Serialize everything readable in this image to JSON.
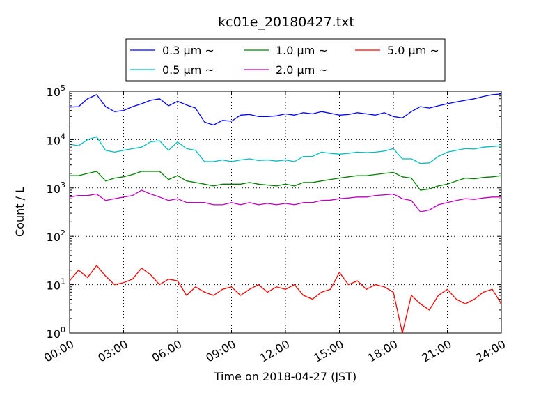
{
  "chart_data": {
    "type": "line",
    "title": "kc01e_20180427.txt",
    "xlabel": "Time on 2018-04-27 (JST)",
    "ylabel": "Count / L",
    "yscale": "log",
    "ylim": [
      1,
      100000
    ],
    "xlim": [
      "00:00",
      "24:00"
    ],
    "x_ticks": [
      "00:00",
      "03:00",
      "06:00",
      "09:00",
      "12:00",
      "15:00",
      "18:00",
      "21:00",
      "24:00"
    ],
    "y_ticks": [
      {
        "value": 1,
        "base": "10",
        "exp": "0"
      },
      {
        "value": 10,
        "base": "10",
        "exp": "1"
      },
      {
        "value": 100,
        "base": "10",
        "exp": "2"
      },
      {
        "value": 1000,
        "base": "10",
        "exp": "3"
      },
      {
        "value": 10000,
        "base": "10",
        "exp": "4"
      },
      {
        "value": 100000,
        "base": "10",
        "exp": "5"
      }
    ],
    "grid": true,
    "legend_position": "top-center",
    "x_hours": [
      0,
      0.5,
      1,
      1.5,
      2,
      2.5,
      3,
      3.5,
      4,
      4.5,
      5,
      5.5,
      6,
      6.5,
      7,
      7.5,
      8,
      8.5,
      9,
      9.5,
      10,
      10.5,
      11,
      11.5,
      12,
      12.5,
      13,
      13.5,
      14,
      14.5,
      15,
      15.5,
      16,
      16.5,
      17,
      17.5,
      18,
      18.5,
      19,
      19.5,
      20,
      20.5,
      21,
      21.5,
      22,
      22.5,
      23,
      23.5,
      24
    ],
    "series": [
      {
        "name": "0.3 μm ~",
        "color": "#0000ff",
        "values": [
          47000,
          48000,
          70000,
          85000,
          48000,
          38000,
          40000,
          48000,
          55000,
          65000,
          70000,
          50000,
          62000,
          52000,
          45000,
          23000,
          20000,
          25000,
          24000,
          32000,
          33000,
          30000,
          30000,
          31000,
          34000,
          32000,
          36000,
          34000,
          38000,
          35000,
          32000,
          33000,
          36000,
          34000,
          32000,
          36000,
          30000,
          28000,
          38000,
          48000,
          45000,
          50000,
          55000,
          60000,
          65000,
          70000,
          78000,
          85000,
          88000
        ]
      },
      {
        "name": "0.5 μm ~",
        "color": "#00bfbf",
        "values": [
          8000,
          7500,
          10000,
          11500,
          6000,
          5500,
          6000,
          6500,
          7000,
          9000,
          9500,
          6000,
          9000,
          6500,
          6000,
          3500,
          3500,
          3800,
          3500,
          3800,
          4000,
          3700,
          3800,
          3600,
          3800,
          3500,
          4500,
          4500,
          5500,
          5200,
          5000,
          5200,
          5500,
          5400,
          5500,
          5800,
          6500,
          4000,
          4000,
          3200,
          3300,
          4500,
          5500,
          6000,
          6500,
          6400,
          7000,
          7200,
          7500
        ]
      },
      {
        "name": "1.0 μm ~",
        "color": "#008000",
        "values": [
          1800,
          1800,
          2000,
          2200,
          1400,
          1600,
          1700,
          1900,
          2200,
          2200,
          2200,
          1500,
          1800,
          1400,
          1300,
          1200,
          1100,
          1200,
          1200,
          1200,
          1300,
          1200,
          1150,
          1100,
          1200,
          1100,
          1300,
          1300,
          1400,
          1500,
          1600,
          1700,
          1800,
          1800,
          1900,
          2000,
          2100,
          1700,
          1600,
          900,
          950,
          1100,
          1200,
          1400,
          1600,
          1550,
          1650,
          1700,
          1800
        ]
      },
      {
        "name": "2.0 μm ~",
        "color": "#bf00bf",
        "values": [
          650,
          700,
          700,
          750,
          550,
          600,
          650,
          700,
          900,
          750,
          650,
          550,
          600,
          500,
          500,
          500,
          450,
          450,
          500,
          450,
          500,
          450,
          480,
          450,
          480,
          450,
          500,
          500,
          550,
          560,
          600,
          620,
          650,
          650,
          700,
          720,
          750,
          600,
          550,
          320,
          350,
          450,
          500,
          550,
          600,
          580,
          620,
          650,
          650
        ]
      },
      {
        "name": "5.0 μm ~",
        "color": "#ff0000",
        "values": [
          12,
          20,
          14,
          25,
          15,
          10,
          11,
          13,
          22,
          16,
          10,
          13,
          12,
          6,
          9,
          7,
          6,
          8,
          9,
          6,
          8,
          10,
          7,
          9,
          8,
          10,
          6,
          5,
          7,
          8,
          18,
          10,
          12,
          8,
          10,
          9,
          7,
          1,
          6,
          4,
          3,
          6,
          8,
          5,
          4,
          5,
          7,
          8,
          4
        ]
      }
    ]
  }
}
